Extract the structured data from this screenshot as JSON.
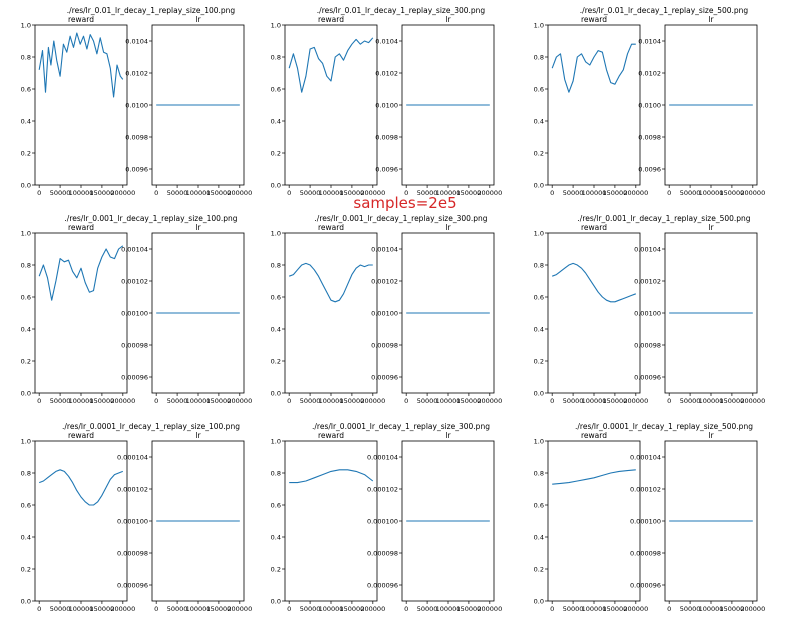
{
  "suptitle": "samples=2e5",
  "reward_axis": {
    "xlim": [
      -10000,
      210000
    ],
    "ylim": [
      0.0,
      1.0
    ],
    "xticks": [
      0,
      50000,
      100000,
      150000,
      200000
    ],
    "xtick_labels": [
      "0",
      "50000",
      "100000",
      "150000",
      "200000"
    ],
    "yticks": [
      0.0,
      0.2,
      0.4,
      0.6,
      0.8,
      1.0
    ],
    "ytick_labels": [
      "0.0",
      "0.2",
      "0.4",
      "0.6",
      "0.8",
      "1.0"
    ]
  },
  "lr_axis": {
    "xlim": [
      -10000,
      210000
    ],
    "xticks": [
      0,
      50000,
      100000,
      150000,
      200000
    ],
    "xtick_labels": [
      "0",
      "50000",
      "100000",
      "150000",
      "200000"
    ],
    "ytick_rel": [
      -0.04,
      -0.02,
      0.0,
      0.02,
      0.04
    ]
  },
  "chart_data": [
    {
      "type": "line",
      "file_title": "./res/lr_0.01_lr_decay_1_replay_size_100.png",
      "reward": {
        "title": "reward",
        "x": [
          0,
          8000,
          15000,
          22000,
          28000,
          35000,
          42000,
          50000,
          58000,
          66000,
          74000,
          82000,
          90000,
          98000,
          106000,
          114000,
          122000,
          130000,
          138000,
          146000,
          154000,
          162000,
          170000,
          178000,
          186000,
          194000,
          200000
        ],
        "y": [
          0.72,
          0.84,
          0.58,
          0.86,
          0.75,
          0.9,
          0.78,
          0.68,
          0.88,
          0.83,
          0.93,
          0.86,
          0.95,
          0.88,
          0.93,
          0.85,
          0.94,
          0.9,
          0.82,
          0.92,
          0.83,
          0.82,
          0.73,
          0.55,
          0.75,
          0.68,
          0.66
        ]
      },
      "lr": {
        "title": "lr",
        "value": 0.01,
        "ytick_labels": [
          "0.0096",
          "0.0098",
          "0.0100",
          "0.0102",
          "0.0104"
        ]
      }
    },
    {
      "type": "line",
      "file_title": "./res/lr_0.01_lr_decay_1_replay_size_300.png",
      "reward": {
        "title": "reward",
        "x": [
          0,
          10000,
          20000,
          30000,
          40000,
          50000,
          60000,
          70000,
          80000,
          90000,
          100000,
          110000,
          120000,
          130000,
          140000,
          150000,
          160000,
          170000,
          180000,
          190000,
          200000
        ],
        "y": [
          0.73,
          0.82,
          0.73,
          0.58,
          0.68,
          0.85,
          0.86,
          0.79,
          0.76,
          0.68,
          0.65,
          0.8,
          0.82,
          0.78,
          0.84,
          0.88,
          0.91,
          0.88,
          0.9,
          0.89,
          0.92
        ]
      },
      "lr": {
        "title": "lr",
        "value": 0.01,
        "ytick_labels": [
          "0.0096",
          "0.0098",
          "0.0100",
          "0.0102",
          "0.0104"
        ]
      }
    },
    {
      "type": "line",
      "file_title": "./res/lr_0.01_lr_decay_1_replay_size_500.png",
      "reward": {
        "title": "reward",
        "x": [
          0,
          10000,
          20000,
          30000,
          40000,
          50000,
          60000,
          70000,
          80000,
          90000,
          100000,
          110000,
          120000,
          130000,
          140000,
          150000,
          160000,
          170000,
          180000,
          190000,
          200000
        ],
        "y": [
          0.73,
          0.8,
          0.82,
          0.66,
          0.58,
          0.65,
          0.8,
          0.82,
          0.77,
          0.75,
          0.8,
          0.84,
          0.83,
          0.72,
          0.64,
          0.63,
          0.68,
          0.72,
          0.82,
          0.88,
          0.88
        ]
      },
      "lr": {
        "title": "lr",
        "value": 0.01,
        "ytick_labels": [
          "0.0096",
          "0.0098",
          "0.0100",
          "0.0102",
          "0.0104"
        ]
      }
    },
    {
      "type": "line",
      "file_title": "./res/lr_0.001_lr_decay_1_replay_size_100.png",
      "reward": {
        "title": "reward",
        "x": [
          0,
          10000,
          20000,
          30000,
          40000,
          50000,
          60000,
          70000,
          80000,
          90000,
          100000,
          110000,
          120000,
          130000,
          140000,
          150000,
          160000,
          170000,
          180000,
          190000,
          200000
        ],
        "y": [
          0.73,
          0.8,
          0.72,
          0.58,
          0.7,
          0.84,
          0.82,
          0.83,
          0.76,
          0.72,
          0.78,
          0.69,
          0.63,
          0.64,
          0.78,
          0.85,
          0.9,
          0.85,
          0.84,
          0.9,
          0.92
        ]
      },
      "lr": {
        "title": "lr",
        "value": 0.001,
        "ytick_labels": [
          "0.00096",
          "0.00098",
          "0.00100",
          "0.00102",
          "0.00104"
        ]
      }
    },
    {
      "type": "line",
      "file_title": "./res/lr_0.001_lr_decay_1_replay_size_300.png",
      "reward": {
        "title": "reward",
        "x": [
          0,
          10000,
          20000,
          30000,
          40000,
          50000,
          60000,
          70000,
          80000,
          90000,
          100000,
          110000,
          120000,
          130000,
          140000,
          150000,
          160000,
          170000,
          180000,
          190000,
          200000
        ],
        "y": [
          0.73,
          0.74,
          0.77,
          0.8,
          0.81,
          0.8,
          0.77,
          0.73,
          0.68,
          0.63,
          0.58,
          0.57,
          0.58,
          0.62,
          0.68,
          0.74,
          0.78,
          0.8,
          0.79,
          0.8,
          0.8
        ]
      },
      "lr": {
        "title": "lr",
        "value": 0.001,
        "ytick_labels": [
          "0.00096",
          "0.00098",
          "0.00100",
          "0.00102",
          "0.00104"
        ]
      }
    },
    {
      "type": "line",
      "file_title": "./res/lr_0.001_lr_decay_1_replay_size_500.png",
      "reward": {
        "title": "reward",
        "x": [
          0,
          10000,
          20000,
          30000,
          40000,
          50000,
          60000,
          70000,
          80000,
          90000,
          100000,
          110000,
          120000,
          130000,
          140000,
          150000,
          160000,
          170000,
          180000,
          190000,
          200000
        ],
        "y": [
          0.73,
          0.74,
          0.76,
          0.78,
          0.8,
          0.81,
          0.8,
          0.78,
          0.75,
          0.71,
          0.67,
          0.63,
          0.6,
          0.58,
          0.57,
          0.57,
          0.58,
          0.59,
          0.6,
          0.61,
          0.62
        ]
      },
      "lr": {
        "title": "lr",
        "value": 0.001,
        "ytick_labels": [
          "0.00096",
          "0.00098",
          "0.00100",
          "0.00102",
          "0.00104"
        ]
      }
    },
    {
      "type": "line",
      "file_title": "./res/lr_0.0001_lr_decay_1_replay_size_100.png",
      "reward": {
        "title": "reward",
        "x": [
          0,
          10000,
          20000,
          30000,
          40000,
          50000,
          60000,
          70000,
          80000,
          90000,
          100000,
          110000,
          120000,
          130000,
          140000,
          150000,
          160000,
          170000,
          180000,
          190000,
          200000
        ],
        "y": [
          0.74,
          0.75,
          0.77,
          0.79,
          0.81,
          0.82,
          0.81,
          0.78,
          0.74,
          0.69,
          0.65,
          0.62,
          0.6,
          0.6,
          0.62,
          0.66,
          0.71,
          0.76,
          0.79,
          0.8,
          0.81
        ]
      },
      "lr": {
        "title": "lr",
        "value": 0.0001,
        "ytick_labels": [
          "0.000096",
          "0.000098",
          "0.000100",
          "0.000102",
          "0.000104"
        ]
      }
    },
    {
      "type": "line",
      "file_title": "./res/lr_0.0001_lr_decay_1_replay_size_300.png",
      "reward": {
        "title": "reward",
        "x": [
          0,
          20000,
          40000,
          60000,
          80000,
          100000,
          120000,
          140000,
          160000,
          180000,
          200000
        ],
        "y": [
          0.74,
          0.74,
          0.75,
          0.77,
          0.79,
          0.81,
          0.82,
          0.82,
          0.81,
          0.79,
          0.75
        ]
      },
      "lr": {
        "title": "lr",
        "value": 0.0001,
        "ytick_labels": [
          "0.000096",
          "0.000098",
          "0.000100",
          "0.000102",
          "0.000104"
        ]
      }
    },
    {
      "type": "line",
      "file_title": "./res/lr_0.0001_lr_decay_1_replay_size_500.png",
      "reward": {
        "title": "reward",
        "x": [
          0,
          20000,
          40000,
          60000,
          80000,
          100000,
          120000,
          140000,
          160000,
          180000,
          200000
        ],
        "y": [
          0.73,
          0.735,
          0.74,
          0.75,
          0.76,
          0.77,
          0.785,
          0.8,
          0.81,
          0.815,
          0.82
        ]
      },
      "lr": {
        "title": "lr",
        "value": 0.0001,
        "ytick_labels": [
          "0.000096",
          "0.000098",
          "0.000100",
          "0.000102",
          "0.000104"
        ]
      }
    }
  ]
}
